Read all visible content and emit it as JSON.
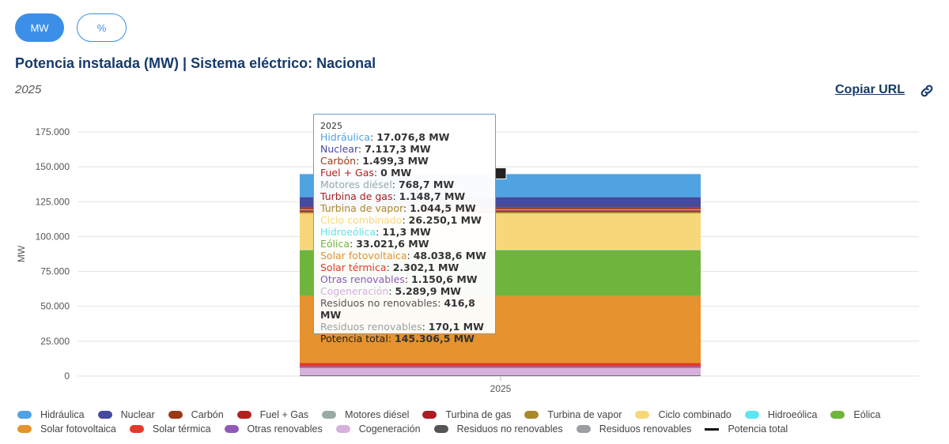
{
  "controls": {
    "mw_label": "MW",
    "pct_label": "%"
  },
  "header": {
    "title": "Potencia instalada (MW) | Sistema eléctrico: Nacional",
    "subtitle": "2025",
    "copy_url_label": "Copiar URL"
  },
  "colors": {
    "accent": "#3b8fe8",
    "title": "#163a6b"
  },
  "chart_data": {
    "type": "bar",
    "stacked": true,
    "categories": [
      "2025"
    ],
    "ylabel": "MW",
    "ylim": [
      0,
      175000
    ],
    "yticks": [
      0,
      25000,
      50000,
      75000,
      100000,
      125000,
      150000,
      175000
    ],
    "ytick_labels": [
      "0",
      "25.000",
      "50.000",
      "75.000",
      "100.000",
      "125.000",
      "150.000",
      "175.000"
    ],
    "grid": true,
    "legend_position": "bottom",
    "series": [
      {
        "name": "Hidráulica",
        "color": "#4fa3e0",
        "values": [
          17076.8
        ],
        "label": "17.076,8 MW"
      },
      {
        "name": "Nuclear",
        "color": "#464a9e",
        "values": [
          7117.3
        ],
        "label": "7.117,3 MW"
      },
      {
        "name": "Carbón",
        "color": "#993a15",
        "values": [
          1499.3
        ],
        "label": "1.499,3 MW"
      },
      {
        "name": "Fuel + Gas",
        "color": "#b3211f",
        "values": [
          0
        ],
        "label": "0 MW"
      },
      {
        "name": "Motores diésel",
        "color": "#99aaa5",
        "values": [
          768.7
        ],
        "label": "768,7 MW"
      },
      {
        "name": "Turbina de gas",
        "color": "#a81e22",
        "values": [
          1148.7
        ],
        "label": "1.148,7 MW"
      },
      {
        "name": "Turbina de vapor",
        "color": "#a9882a",
        "values": [
          1044.5
        ],
        "label": "1.044,5 MW"
      },
      {
        "name": "Ciclo combinado",
        "color": "#f8d77a",
        "values": [
          26250.1
        ],
        "label": "26.250,1 MW"
      },
      {
        "name": "Hidroeólica",
        "color": "#5de6f0",
        "values": [
          11.3
        ],
        "label": "11,3 MW"
      },
      {
        "name": "Eólica",
        "color": "#6fb43c",
        "values": [
          33021.6
        ],
        "label": "33.021,6 MW"
      },
      {
        "name": "Solar fotovoltaica",
        "color": "#e6922e",
        "values": [
          48038.6
        ],
        "label": "48.038,6 MW"
      },
      {
        "name": "Solar térmica",
        "color": "#e23a28",
        "values": [
          2302.1
        ],
        "label": "2.302,1 MW"
      },
      {
        "name": "Otras renovables",
        "color": "#8f5ab9",
        "values": [
          1150.6
        ],
        "label": "1.150,6 MW"
      },
      {
        "name": "Cogeneración",
        "color": "#d6b1dd",
        "values": [
          5289.9
        ],
        "label": "5.289,9 MW"
      },
      {
        "name": "Residuos no renovables",
        "color": "#555555",
        "values": [
          416.8
        ],
        "label": "416,8 MW"
      },
      {
        "name": "Residuos renovables",
        "color": "#9aa0a2",
        "values": [
          170.1
        ],
        "label": "170,1 MW"
      }
    ],
    "total": {
      "name": "Potencia total",
      "color": "#111111",
      "values": [
        145306.5
      ],
      "label": "145.306,5 MW"
    }
  },
  "tooltip": {
    "year": "2025"
  },
  "icons": {
    "copy_link": "link-icon"
  }
}
